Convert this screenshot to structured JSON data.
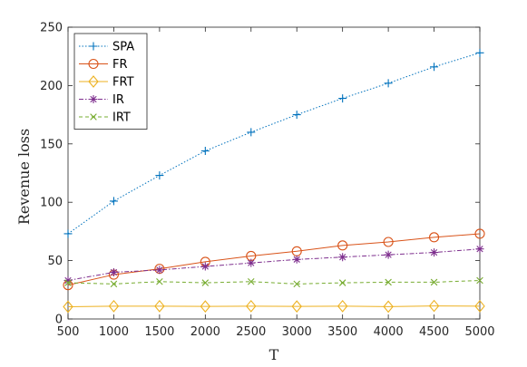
{
  "chart_data": {
    "type": "line",
    "x": [
      500,
      1000,
      1500,
      2000,
      2500,
      3000,
      3500,
      4000,
      4500,
      5000
    ],
    "xlabel": "T",
    "ylabel": "Revenue loss",
    "xlim": [
      500,
      5000
    ],
    "ylim": [
      0,
      250
    ],
    "xticks": [
      "500",
      "1000",
      "1500",
      "2000",
      "2500",
      "3000",
      "3500",
      "4000",
      "4500",
      "5000"
    ],
    "yticks": [
      "0",
      "50",
      "100",
      "150",
      "200",
      "250"
    ],
    "grid": false,
    "legend_position": "top-left",
    "series": [
      {
        "name": "SPA",
        "color": "#0072BD",
        "marker": "plus",
        "dash": "dotted",
        "values": [
          73,
          101,
          123,
          144,
          160,
          175,
          189,
          202,
          216,
          228
        ]
      },
      {
        "name": "FR",
        "color": "#D95319",
        "marker": "circle",
        "dash": "solid",
        "values": [
          29,
          38,
          43,
          49,
          54,
          58,
          63,
          66,
          70,
          73
        ]
      },
      {
        "name": "FRT",
        "color": "#EDB120",
        "marker": "diamond",
        "dash": "solid",
        "values": [
          10.5,
          11,
          11,
          10.8,
          11,
          10.8,
          11,
          10.6,
          11.2,
          11
        ]
      },
      {
        "name": "IR",
        "color": "#7E2F8E",
        "marker": "asterisk",
        "dash": "dashdot",
        "values": [
          33,
          40,
          42,
          45,
          48,
          51,
          53,
          55,
          57,
          60
        ]
      },
      {
        "name": "IRT",
        "color": "#77AC30",
        "marker": "x",
        "dash": "dashed",
        "values": [
          31,
          30,
          32,
          31,
          32,
          30,
          31,
          31.5,
          31.5,
          33
        ]
      }
    ]
  }
}
